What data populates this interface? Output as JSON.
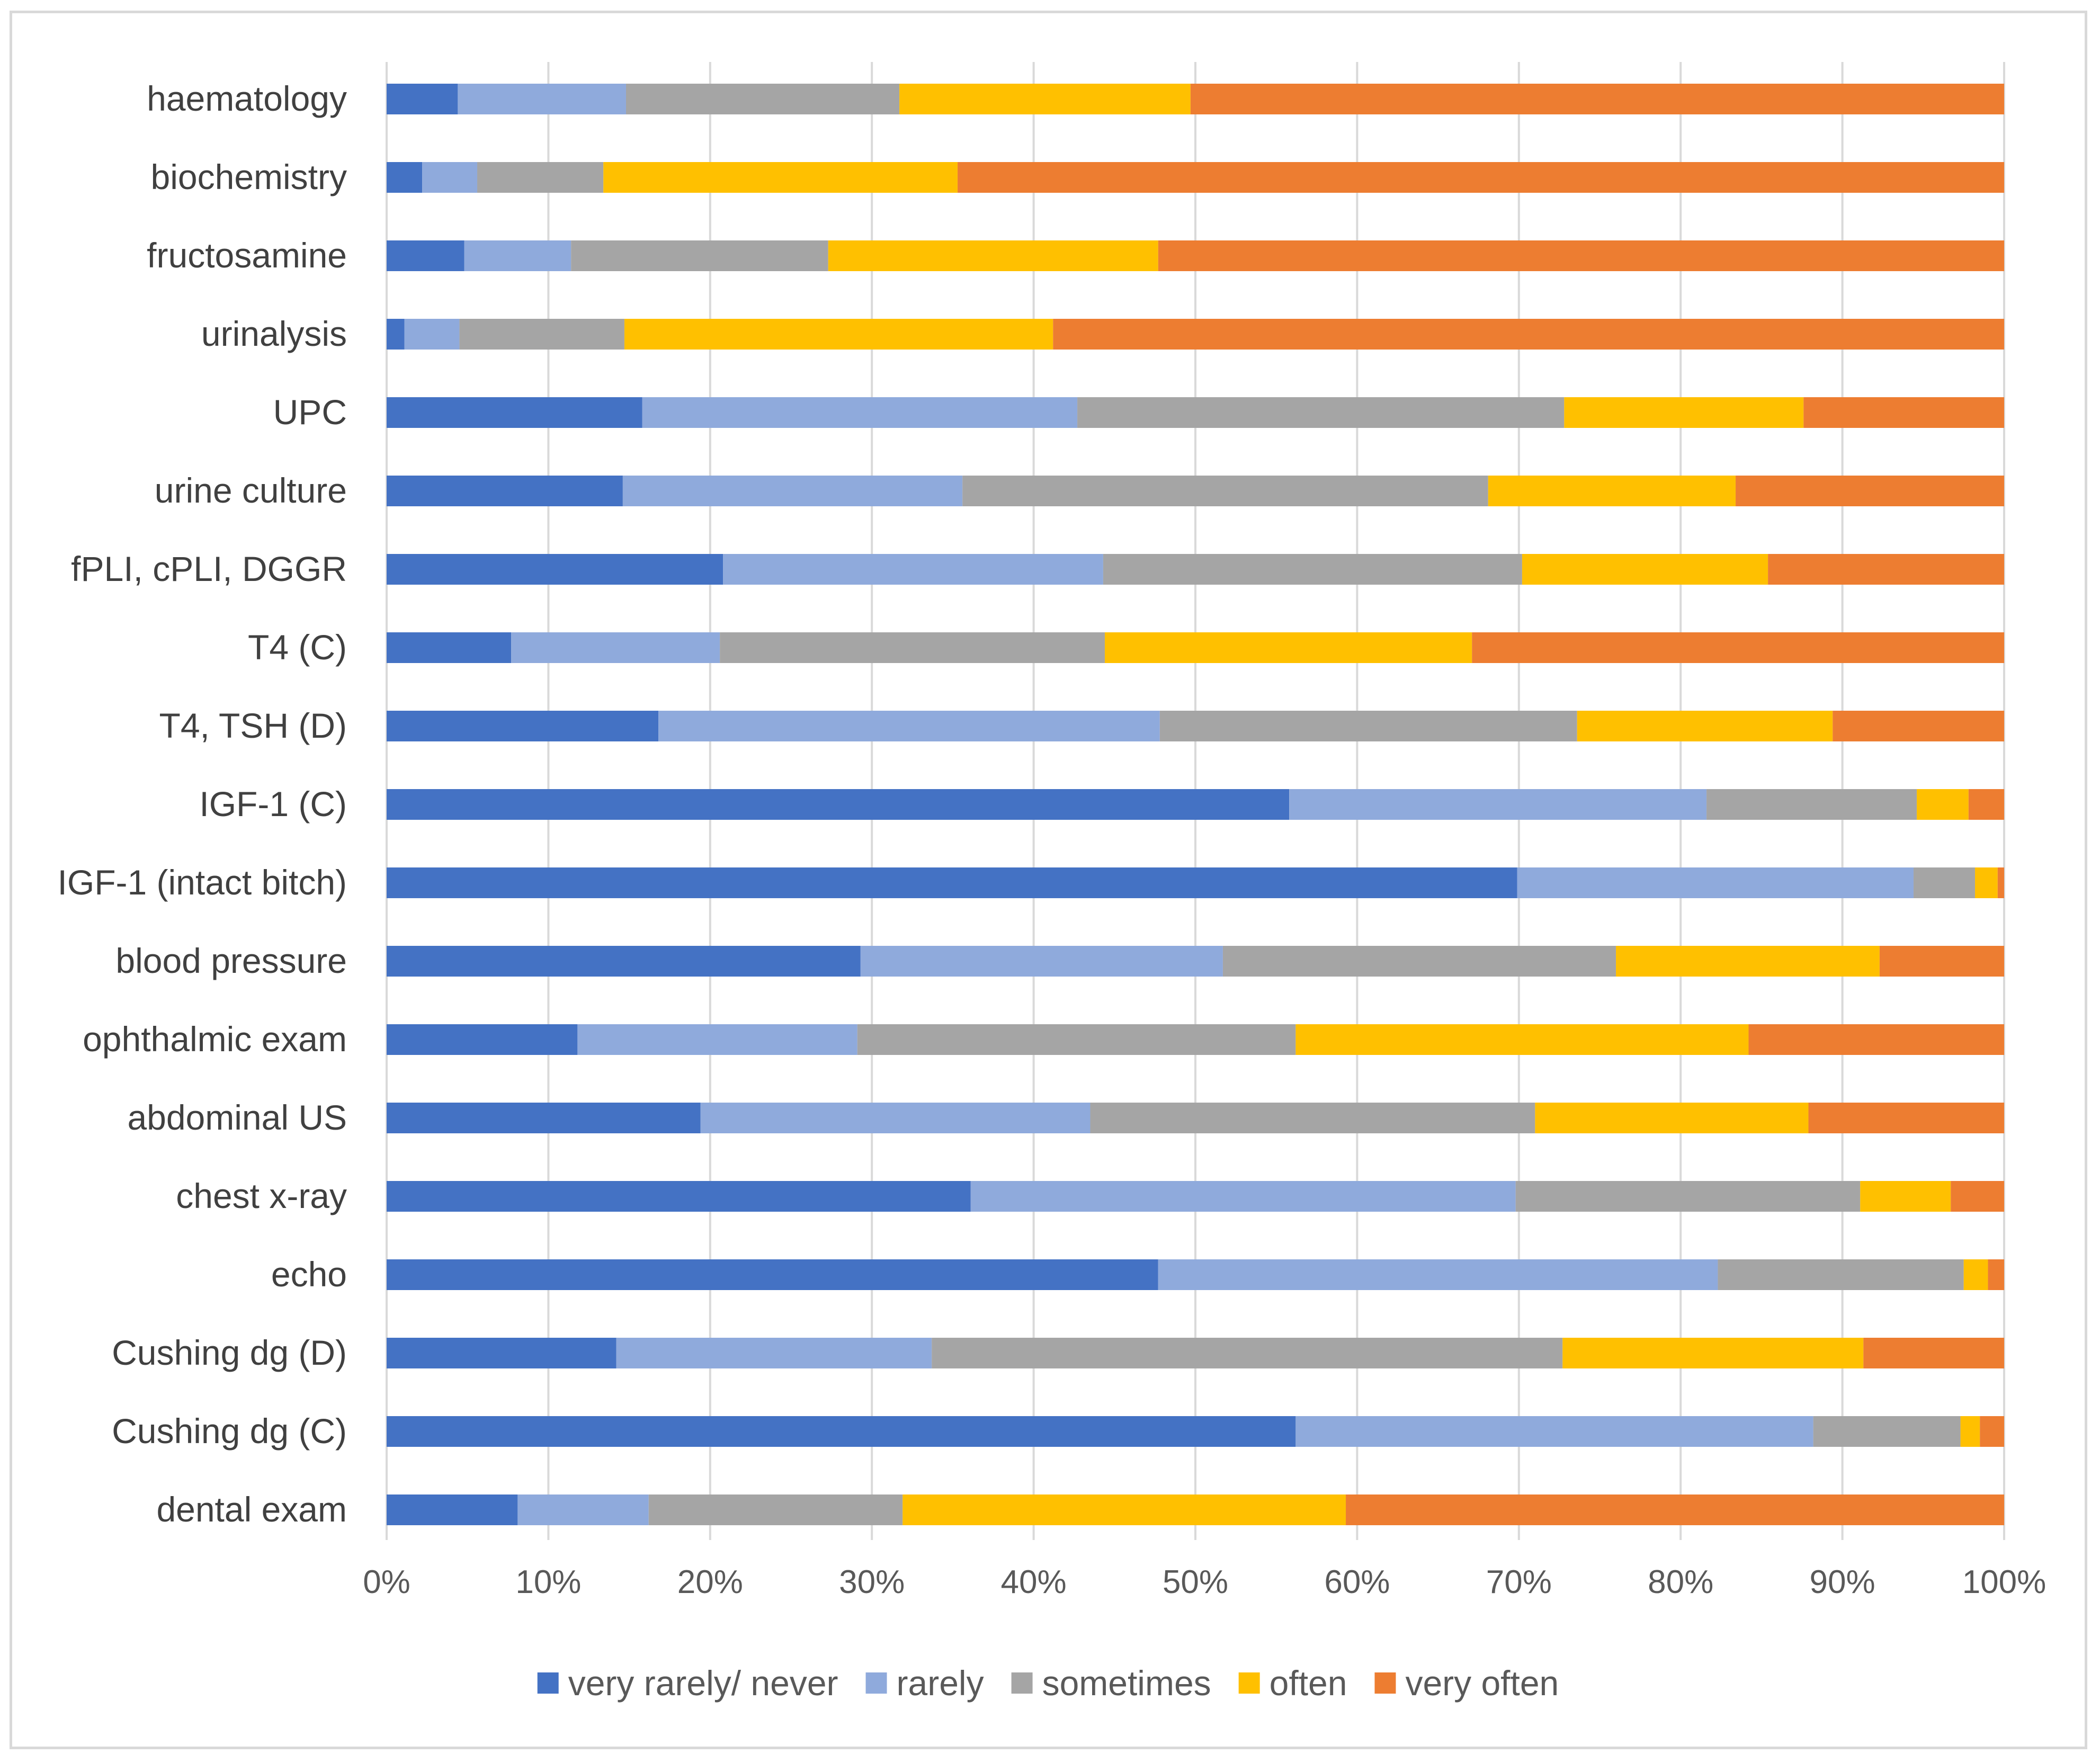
{
  "chart_data": {
    "type": "bar",
    "orientation": "horizontal",
    "stacked": true,
    "normalized_percent": true,
    "title": "",
    "xlabel": "",
    "ylabel": "",
    "xlim": [
      0,
      100
    ],
    "x_ticks": [
      "0%",
      "10%",
      "20%",
      "30%",
      "40%",
      "50%",
      "60%",
      "70%",
      "80%",
      "90%",
      "100%"
    ],
    "grid": "vertical",
    "legend_position": "bottom",
    "categories": [
      "haematology",
      "biochemistry",
      "fructosamine",
      "urinalysis",
      "UPC",
      "urine culture",
      "fPLI, cPLI, DGGR",
      "T4 (C)",
      "T4, TSH (D)",
      "IGF-1 (C)",
      "IGF-1 (intact bitch)",
      "blood pressure",
      "ophthalmic exam",
      "abdominal US",
      "chest x-ray",
      "echo",
      "Cushing dg (D)",
      "Cushing dg (C)",
      "dental exam"
    ],
    "series": [
      {
        "name": "very rarely/ never",
        "color": "#4472c4",
        "values": [
          4.4,
          2.2,
          4.8,
          1.1,
          15.8,
          14.6,
          20.8,
          7.7,
          16.8,
          55.8,
          69.9,
          29.3,
          11.8,
          19.4,
          36.1,
          47.7,
          14.2,
          56.2,
          8.1
        ]
      },
      {
        "name": "rarely",
        "color": "#8faadc",
        "values": [
          10.4,
          3.4,
          6.6,
          3.4,
          26.9,
          21.0,
          23.5,
          12.9,
          31.0,
          25.8,
          24.5,
          22.4,
          17.3,
          24.1,
          33.7,
          34.6,
          19.5,
          32.0,
          8.1
        ]
      },
      {
        "name": "sometimes",
        "color": "#a5a5a5",
        "values": [
          16.9,
          7.8,
          15.9,
          10.2,
          30.1,
          32.5,
          25.9,
          23.8,
          25.8,
          13.0,
          3.8,
          24.3,
          27.1,
          27.5,
          21.3,
          15.2,
          39.0,
          9.1,
          15.7
        ]
      },
      {
        "name": "often",
        "color": "#ffc000",
        "values": [
          18.0,
          21.9,
          20.4,
          26.5,
          14.8,
          15.3,
          15.2,
          22.7,
          15.8,
          3.2,
          1.4,
          16.3,
          28.0,
          16.9,
          5.6,
          1.5,
          18.6,
          1.2,
          27.4
        ]
      },
      {
        "name": "very often",
        "color": "#ed7d31",
        "values": [
          50.3,
          64.7,
          52.3,
          58.8,
          12.4,
          16.6,
          14.6,
          32.9,
          10.6,
          2.2,
          0.4,
          7.7,
          15.8,
          12.1,
          3.3,
          1.0,
          8.7,
          1.5,
          40.7
        ]
      }
    ]
  }
}
